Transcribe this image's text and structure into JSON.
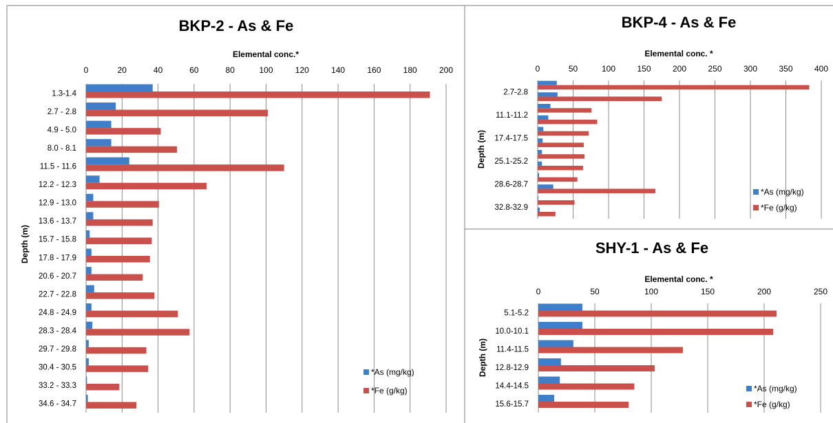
{
  "colors": {
    "as": "#3f7fc9",
    "fe": "#c9504b",
    "frame": "#7f7f7f",
    "background": "#ffffff"
  },
  "chart_data": [
    {
      "type": "bar",
      "orientation": "horizontal",
      "title": "BKP-2 - As & Fe",
      "xlabel": "Elemental conc.*",
      "ylabel": "Depth (m)",
      "xlim": [
        0,
        200
      ],
      "x_ticks": [
        0,
        20,
        40,
        60,
        80,
        100,
        120,
        140,
        160,
        180,
        200
      ],
      "x_axis_position": "top",
      "grid": "vertical",
      "legend_position": "bottom-right",
      "categories": [
        "1.3-1.4",
        "2.7 - 2.8",
        "4.9 - 5.0",
        "8.0 - 8.1",
        "11.5 - 11.6",
        "12.2 - 12.3",
        "12.9 - 13.0",
        "13.6 - 13.7",
        "15.7 - 15.8",
        "17.8 - 17.9",
        "20.6 - 20.7",
        "22.7 - 22.8",
        "24.8 - 24.9",
        "28.3 - 28.4",
        "29.7 - 29.8",
        "30.4 - 30.5",
        "33.2 - 33.3",
        "34.6 - 34.7"
      ],
      "series": [
        {
          "name": "*As (mg/kg)",
          "color_key": "as",
          "values": [
            37,
            16.5,
            14,
            14,
            24,
            7.5,
            4,
            4,
            2,
            3,
            3,
            4.5,
            3,
            3.5,
            1.5,
            1.5,
            0.5,
            1
          ]
        },
        {
          "name": "*Fe (g/kg)",
          "color_key": "fe",
          "values": [
            191,
            101,
            41.5,
            50.5,
            110,
            67,
            40.5,
            37,
            36.5,
            35.5,
            31.5,
            38,
            51,
            57.5,
            33.5,
            34.5,
            18.5,
            28
          ]
        }
      ]
    },
    {
      "type": "bar",
      "orientation": "horizontal",
      "title": "BKP-4 - As & Fe",
      "xlabel": "Elemental conc. *",
      "ylabel": "Depth (m)",
      "xlim": [
        0,
        400
      ],
      "x_ticks": [
        0,
        50,
        100,
        150,
        200,
        250,
        300,
        350,
        400
      ],
      "x_axis_position": "top",
      "grid": "vertical",
      "legend_position": "bottom-right",
      "categories": [
        "2.7-2.8",
        "",
        "11.1-11.2",
        "",
        "17.4-17.5",
        "",
        "25.1-25.2",
        "",
        "28.6-28.7",
        "",
        "32.8-32.9",
        ""
      ],
      "series": [
        {
          "name": "*As (mg/kg)",
          "color_key": "as",
          "values": [
            27,
            28,
            18,
            15,
            8,
            7,
            6,
            6,
            2,
            22,
            1,
            3
          ]
        },
        {
          "name": "*Fe (g/kg)",
          "color_key": "fe",
          "values": [
            383,
            175,
            76,
            84,
            72,
            65,
            66,
            64,
            56,
            166,
            52,
            25
          ]
        }
      ]
    },
    {
      "type": "bar",
      "orientation": "horizontal",
      "title": "SHY-1 - As & Fe",
      "xlabel": "Elemental conc. *",
      "ylabel": "Depth (m)",
      "xlim": [
        0,
        250
      ],
      "x_ticks": [
        0,
        50,
        100,
        150,
        200,
        250
      ],
      "x_axis_position": "top",
      "grid": "vertical",
      "legend_position": "bottom-right",
      "categories": [
        "5.1-5.2",
        "10.0-10.1",
        "11.4-11.5",
        "12.8-12.9",
        "14.4-14.5",
        "15.6-15.7"
      ],
      "series": [
        {
          "name": "*As (mg/kg)",
          "color_key": "as",
          "values": [
            39,
            39,
            31,
            20,
            19,
            14
          ]
        },
        {
          "name": "*Fe (g/kg)",
          "color_key": "fe",
          "values": [
            211,
            208,
            128,
            103,
            85,
            80
          ]
        }
      ]
    }
  ]
}
